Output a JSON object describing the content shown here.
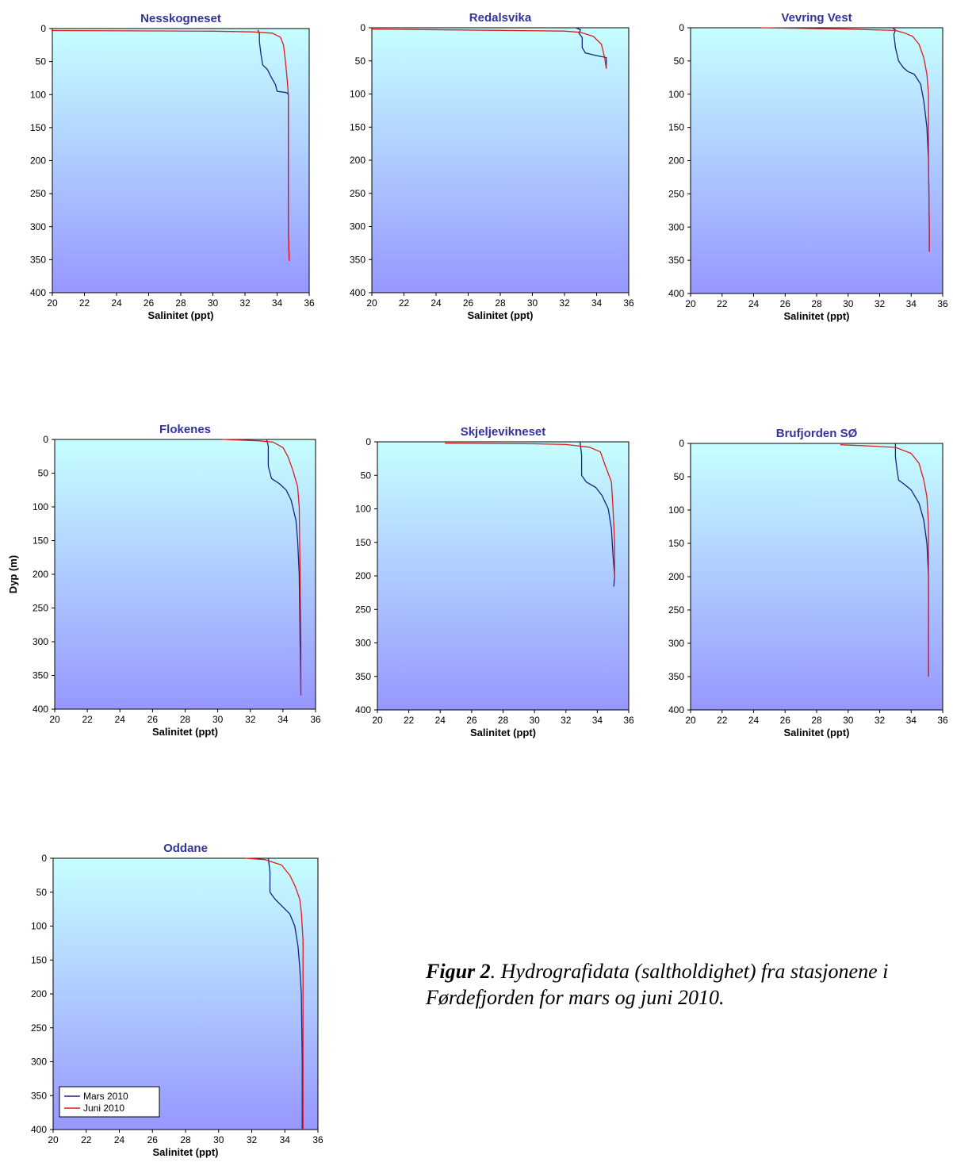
{
  "chart_data": [
    {
      "type": "line",
      "title": "Nesskogneset",
      "xlabel": "Salinitet (ppt)",
      "ylabel": "",
      "xlim": [
        20,
        36
      ],
      "ylim": [
        400,
        0
      ],
      "x_ticks": [
        "20",
        "22",
        "24",
        "26",
        "28",
        "30",
        "32",
        "34",
        "36"
      ],
      "y_ticks": [
        "0",
        "50",
        "100",
        "150",
        "200",
        "250",
        "300",
        "350",
        "400"
      ],
      "series": [
        {
          "name": "Mars 2010",
          "color": "#1a237e",
          "points": [
            [
              32.8,
              2
            ],
            [
              32.9,
              8
            ],
            [
              32.9,
              20
            ],
            [
              33.0,
              40
            ],
            [
              33.1,
              55
            ],
            [
              33.4,
              62
            ],
            [
              33.6,
              72
            ],
            [
              33.9,
              85
            ],
            [
              34.0,
              95
            ],
            [
              34.6,
              97
            ],
            [
              34.7,
              100
            ],
            [
              34.7,
              200
            ],
            [
              34.7,
              300
            ],
            [
              34.75,
              350
            ]
          ]
        },
        {
          "name": "Juni 2010",
          "color": "#e31a1c",
          "points": [
            [
              20.0,
              3
            ],
            [
              30.0,
              4
            ],
            [
              32.5,
              5
            ],
            [
              33.7,
              7
            ],
            [
              34.2,
              13
            ],
            [
              34.4,
              25
            ],
            [
              34.5,
              45
            ],
            [
              34.6,
              70
            ],
            [
              34.7,
              100
            ],
            [
              34.7,
              200
            ],
            [
              34.7,
              300
            ],
            [
              34.75,
              352
            ]
          ]
        }
      ]
    },
    {
      "type": "line",
      "title": "Redalsvika",
      "xlabel": "Salinitet (ppt)",
      "ylabel": "",
      "xlim": [
        20,
        36
      ],
      "ylim": [
        400,
        0
      ],
      "x_ticks": [
        "20",
        "22",
        "24",
        "26",
        "28",
        "30",
        "32",
        "34",
        "36"
      ],
      "y_ticks": [
        "0",
        "50",
        "100",
        "150",
        "200",
        "250",
        "300",
        "350",
        "400"
      ],
      "series": [
        {
          "name": "Mars 2010",
          "color": "#1a237e",
          "points": [
            [
              32.7,
              0
            ],
            [
              33.0,
              3
            ],
            [
              32.9,
              8
            ],
            [
              33.1,
              15
            ],
            [
              33.1,
              30
            ],
            [
              33.3,
              38
            ],
            [
              34.0,
              42
            ],
            [
              34.6,
              45
            ],
            [
              34.6,
              60
            ]
          ]
        },
        {
          "name": "Juni 2010",
          "color": "#e31a1c",
          "points": [
            [
              20.0,
              2
            ],
            [
              28.0,
              4
            ],
            [
              32.0,
              5
            ],
            [
              33.0,
              7
            ],
            [
              33.8,
              13
            ],
            [
              34.3,
              25
            ],
            [
              34.5,
              45
            ],
            [
              34.6,
              62
            ]
          ]
        }
      ]
    },
    {
      "type": "line",
      "title": "Vevring Vest",
      "xlabel": "Salinitet (ppt)",
      "ylabel": "",
      "xlim": [
        20,
        36
      ],
      "ylim": [
        400,
        0
      ],
      "x_ticks": [
        "20",
        "22",
        "24",
        "26",
        "28",
        "30",
        "32",
        "34",
        "36"
      ],
      "y_ticks": [
        "0",
        "50",
        "100",
        "150",
        "200",
        "250",
        "300",
        "350",
        "400"
      ],
      "series": [
        {
          "name": "Mars 2010",
          "color": "#1a237e",
          "points": [
            [
              32.8,
              0
            ],
            [
              33.0,
              3
            ],
            [
              32.9,
              10
            ],
            [
              33.0,
              30
            ],
            [
              33.2,
              50
            ],
            [
              33.5,
              60
            ],
            [
              33.8,
              66
            ],
            [
              34.2,
              70
            ],
            [
              34.6,
              85
            ],
            [
              34.8,
              110
            ],
            [
              35.0,
              150
            ],
            [
              35.1,
              200
            ],
            [
              35.15,
              300
            ],
            [
              35.15,
              337
            ]
          ]
        },
        {
          "name": "Juni 2010",
          "color": "#e31a1c",
          "points": [
            [
              24.5,
              0
            ],
            [
              30.0,
              2
            ],
            [
              33.0,
              4
            ],
            [
              33.6,
              8
            ],
            [
              34.1,
              13
            ],
            [
              34.5,
              25
            ],
            [
              34.8,
              45
            ],
            [
              35.0,
              70
            ],
            [
              35.1,
              100
            ],
            [
              35.1,
              200
            ],
            [
              35.15,
              300
            ],
            [
              35.15,
              337
            ]
          ]
        }
      ]
    },
    {
      "type": "line",
      "title": "Flokenes",
      "xlabel": "Salinitet (ppt)",
      "ylabel": "Dyp (m)",
      "xlim": [
        20,
        36
      ],
      "ylim": [
        400,
        0
      ],
      "x_ticks": [
        "20",
        "22",
        "24",
        "26",
        "28",
        "30",
        "32",
        "34",
        "36"
      ],
      "y_ticks": [
        "0",
        "50",
        "100",
        "150",
        "200",
        "250",
        "300",
        "350",
        "400"
      ],
      "series": [
        {
          "name": "Mars 2010",
          "color": "#1a237e",
          "points": [
            [
              33.0,
              0
            ],
            [
              33.1,
              10
            ],
            [
              33.1,
              40
            ],
            [
              33.3,
              58
            ],
            [
              33.8,
              66
            ],
            [
              34.2,
              75
            ],
            [
              34.5,
              90
            ],
            [
              34.8,
              120
            ],
            [
              34.9,
              150
            ],
            [
              35.0,
              200
            ],
            [
              35.05,
              300
            ],
            [
              35.1,
              378
            ]
          ]
        },
        {
          "name": "Juni 2010",
          "color": "#e31a1c",
          "points": [
            [
              30.3,
              0
            ],
            [
              32.5,
              2
            ],
            [
              33.4,
              4
            ],
            [
              34.0,
              12
            ],
            [
              34.3,
              25
            ],
            [
              34.6,
              45
            ],
            [
              34.9,
              70
            ],
            [
              35.0,
              100
            ],
            [
              35.05,
              200
            ],
            [
              35.1,
              300
            ],
            [
              35.1,
              380
            ]
          ]
        }
      ]
    },
    {
      "type": "line",
      "title": "Skjeljevikneset",
      "xlabel": "Salinitet (ppt)",
      "ylabel": "",
      "xlim": [
        20,
        36
      ],
      "ylim": [
        400,
        0
      ],
      "x_ticks": [
        "20",
        "22",
        "24",
        "26",
        "28",
        "30",
        "32",
        "34",
        "36"
      ],
      "y_ticks": [
        "0",
        "50",
        "100",
        "150",
        "200",
        "250",
        "300",
        "350",
        "400"
      ],
      "series": [
        {
          "name": "Mars 2010",
          "color": "#1a237e",
          "points": [
            [
              32.9,
              0
            ],
            [
              33.0,
              20
            ],
            [
              33.0,
              50
            ],
            [
              33.3,
              60
            ],
            [
              33.9,
              68
            ],
            [
              34.3,
              80
            ],
            [
              34.7,
              100
            ],
            [
              34.9,
              130
            ],
            [
              35.0,
              170
            ],
            [
              35.1,
              200
            ],
            [
              35.05,
              216
            ]
          ]
        },
        {
          "name": "Juni 2010",
          "color": "#e31a1c",
          "points": [
            [
              24.3,
              2
            ],
            [
              30.0,
              3
            ],
            [
              32.0,
              4
            ],
            [
              33.5,
              8
            ],
            [
              34.2,
              15
            ],
            [
              34.5,
              35
            ],
            [
              34.9,
              60
            ],
            [
              35.0,
              100
            ],
            [
              35.1,
              150
            ],
            [
              35.1,
              205
            ]
          ]
        }
      ]
    },
    {
      "type": "line",
      "title": "Brufjorden SØ",
      "xlabel": "Salinitet (ppt)",
      "ylabel": "",
      "xlim": [
        20,
        36
      ],
      "ylim": [
        400,
        0
      ],
      "x_ticks": [
        "20",
        "22",
        "24",
        "26",
        "28",
        "30",
        "32",
        "34",
        "36"
      ],
      "y_ticks": [
        "0",
        "50",
        "100",
        "150",
        "200",
        "250",
        "300",
        "350",
        "400"
      ],
      "series": [
        {
          "name": "Mars 2010",
          "color": "#1a237e",
          "points": [
            [
              33.0,
              0
            ],
            [
              33.0,
              20
            ],
            [
              33.1,
              40
            ],
            [
              33.2,
              55
            ],
            [
              33.6,
              62
            ],
            [
              34.0,
              70
            ],
            [
              34.5,
              90
            ],
            [
              34.8,
              115
            ],
            [
              35.0,
              150
            ],
            [
              35.1,
              200
            ],
            [
              35.1,
              300
            ],
            [
              35.1,
              350
            ]
          ]
        },
        {
          "name": "Juni 2010",
          "color": "#e31a1c",
          "points": [
            [
              29.5,
              2
            ],
            [
              31.5,
              4
            ],
            [
              33.0,
              6
            ],
            [
              34.0,
              15
            ],
            [
              34.5,
              30
            ],
            [
              34.8,
              55
            ],
            [
              35.0,
              80
            ],
            [
              35.1,
              120
            ],
            [
              35.1,
              200
            ],
            [
              35.1,
              300
            ],
            [
              35.1,
              350
            ]
          ]
        }
      ]
    },
    {
      "type": "line",
      "title": "Oddane",
      "xlabel": "Salinitet (ppt)",
      "ylabel": "",
      "xlim": [
        20,
        36
      ],
      "ylim": [
        400,
        0
      ],
      "x_ticks": [
        "20",
        "22",
        "24",
        "26",
        "28",
        "30",
        "32",
        "34",
        "36"
      ],
      "y_ticks": [
        "0",
        "50",
        "100",
        "150",
        "200",
        "250",
        "300",
        "350",
        "400"
      ],
      "legend": {
        "position": "bottom-left",
        "entries": [
          "Mars 2010",
          "Juni 2010"
        ]
      },
      "series": [
        {
          "name": "Mars 2010",
          "color": "#1a237e",
          "points": [
            [
              33.0,
              0
            ],
            [
              33.1,
              20
            ],
            [
              33.1,
              50
            ],
            [
              33.4,
              60
            ],
            [
              33.8,
              70
            ],
            [
              34.3,
              82
            ],
            [
              34.6,
              100
            ],
            [
              34.8,
              130
            ],
            [
              34.9,
              160
            ],
            [
              35.0,
              200
            ],
            [
              35.05,
              300
            ],
            [
              35.05,
              400
            ]
          ]
        },
        {
          "name": "Juni 2010",
          "color": "#e31a1c",
          "points": [
            [
              31.6,
              0
            ],
            [
              32.8,
              2
            ],
            [
              33.8,
              10
            ],
            [
              34.3,
              25
            ],
            [
              34.6,
              40
            ],
            [
              34.9,
              60
            ],
            [
              35.0,
              80
            ],
            [
              35.1,
              120
            ],
            [
              35.1,
              200
            ],
            [
              35.1,
              300
            ],
            [
              35.1,
              400
            ]
          ]
        }
      ]
    }
  ],
  "caption": {
    "label": "Figur 2",
    "text": ". Hydrografidata (saltholdighet) fra stasjonene i Førdefjorden for mars og juni 2010."
  }
}
